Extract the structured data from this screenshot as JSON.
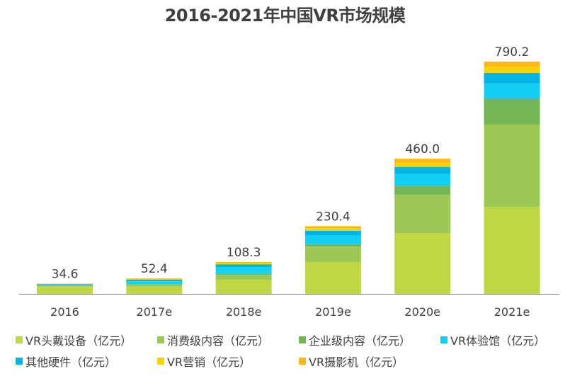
{
  "chart_data": {
    "type": "bar",
    "stacked": true,
    "title": "2016-2021年中国VR市场规模",
    "xlabel": "",
    "ylabel": "",
    "categories": [
      "2016",
      "2017e",
      "2018e",
      "2019e",
      "2020e",
      "2021e"
    ],
    "totals": [
      "34.6",
      "52.4",
      "108.3",
      "230.4",
      "460.0",
      "790.2"
    ],
    "total_values": [
      34.6,
      52.4,
      108.3,
      230.4,
      460.0,
      790.2
    ],
    "ylim": [
      0,
      800
    ],
    "grid": false,
    "legend_position": "bottom",
    "series": [
      {
        "name": "VR头戴设备（亿元）",
        "color": "#C0D643",
        "values": [
          25.5,
          24.5,
          48,
          108,
          207,
          296
        ]
      },
      {
        "name": "消费级内容（亿元）",
        "color": "#9BC953",
        "values": [
          2.5,
          7,
          17,
          53,
          130,
          280
        ]
      },
      {
        "name": "企业级内容（亿元）",
        "color": "#72B754",
        "values": [
          1,
          1.5,
          3,
          8,
          31,
          89
        ]
      },
      {
        "name": "VR体验馆（亿元）",
        "color": "#12CFF5",
        "values": [
          3.5,
          10,
          23,
          30,
          40,
          51
        ]
      },
      {
        "name": "其他硬件（亿元）",
        "color": "#00B4E6",
        "values": [
          1.3,
          5.4,
          9.3,
          15.4,
          24,
          36
        ]
      },
      {
        "name": "VR营销（亿元）",
        "color": "#FFD200",
        "values": [
          0.5,
          2,
          4.5,
          8,
          14,
          21.2
        ]
      },
      {
        "name": "VR摄影机（亿元）",
        "color": "#FFB81C",
        "values": [
          0.3,
          2,
          3.5,
          8,
          14,
          17
        ]
      }
    ]
  },
  "legend": [
    {
      "label": "VR头戴设备（亿元）",
      "color": "#C0D643"
    },
    {
      "label": "消费级内容（亿元）",
      "color": "#9BC953"
    },
    {
      "label": "企业级内容（亿元）",
      "color": "#72B754"
    },
    {
      "label": "VR体验馆（亿元）",
      "color": "#12CFF5"
    },
    {
      "label": "其他硬件（亿元）",
      "color": "#00B4E6"
    },
    {
      "label": "VR营销（亿元）",
      "color": "#FFD200"
    },
    {
      "label": "VR摄影机（亿元）",
      "color": "#FFB81C"
    }
  ]
}
